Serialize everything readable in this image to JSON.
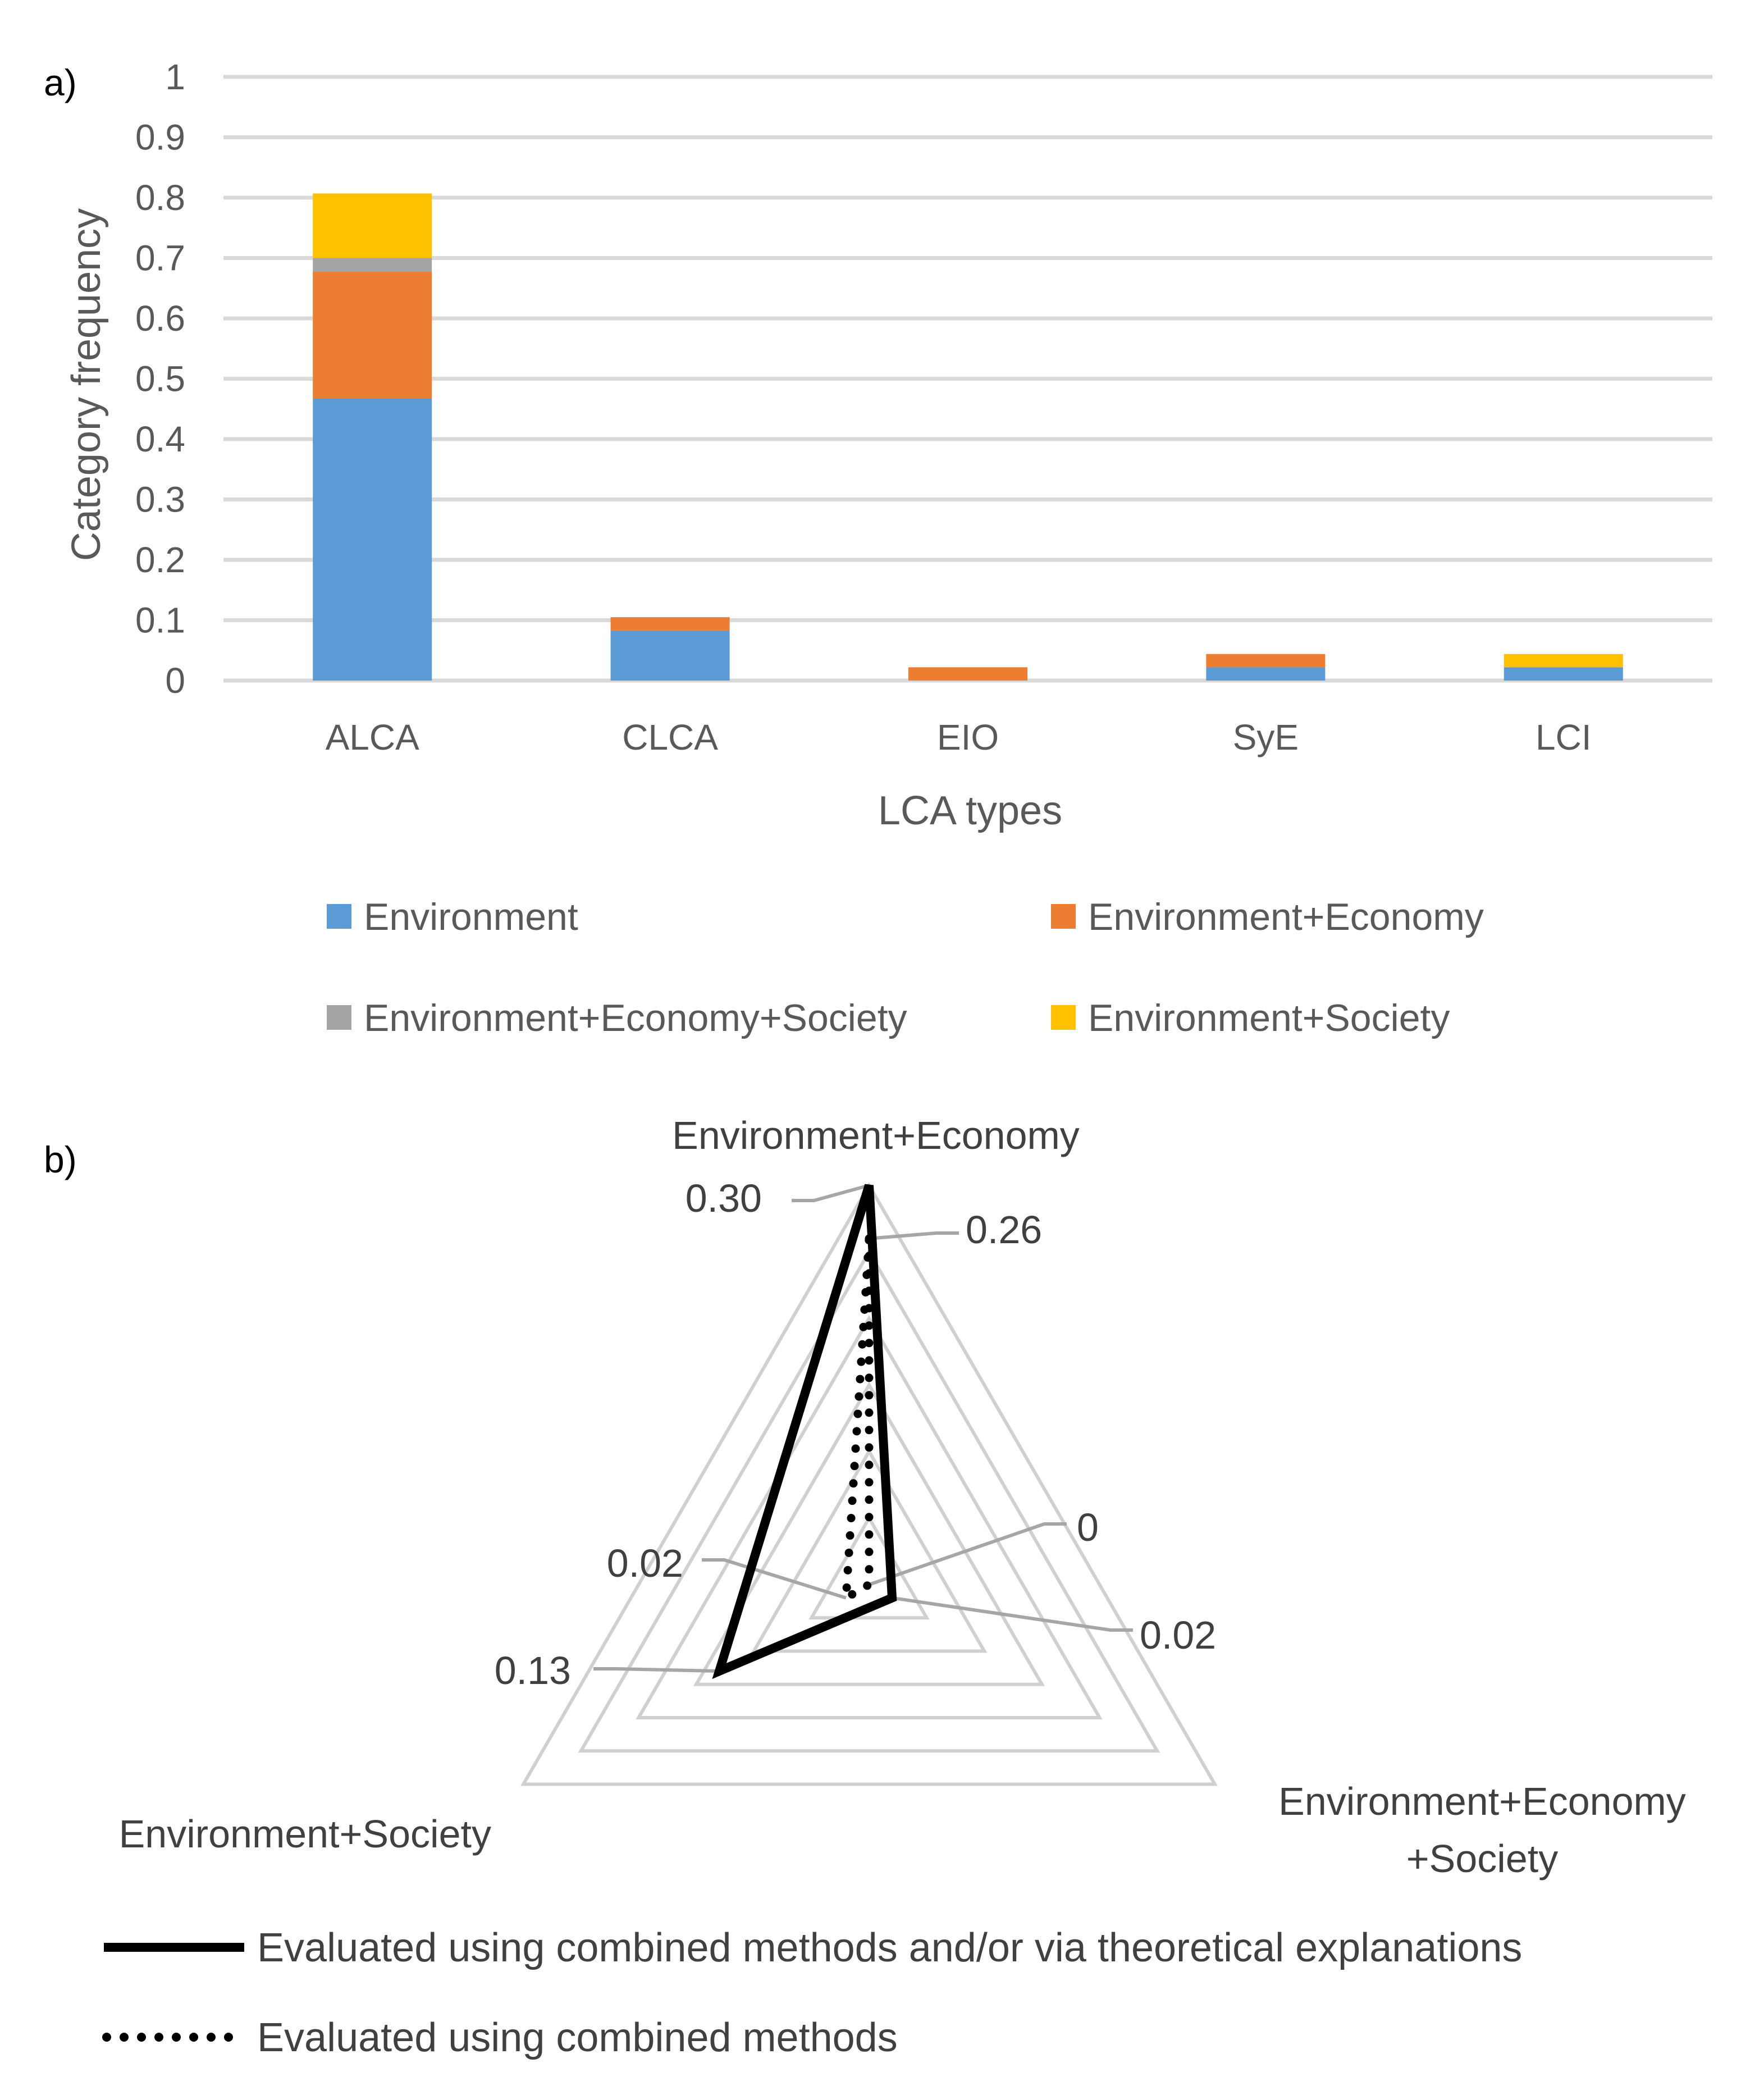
{
  "panel_a_label": "a)",
  "panel_b_label": "b)",
  "colors": {
    "environment": "#5B9BD5",
    "environment_economy": "#ED7D31",
    "environment_economy_society": "#A5A5A5",
    "environment_society": "#FFC000",
    "grid": "#D9D9D9",
    "radar_grid": "#D0D0D0",
    "leader": "#A6A6A6",
    "radar_series": "#000000"
  },
  "chart_data": [
    {
      "type": "bar",
      "stacked": true,
      "title": "",
      "xlabel": "LCA types",
      "ylabel": "Category frequency",
      "ylim": [
        0,
        1
      ],
      "yticks": [
        "0",
        "0.1",
        "0.2",
        "0.3",
        "0.4",
        "0.5",
        "0.6",
        "0.7",
        "0.8",
        "0.9",
        "1"
      ],
      "categories": [
        "ALCA",
        "CLCA",
        "EIO",
        "SyE",
        "LCI"
      ],
      "series": [
        {
          "name": "Environment",
          "color_key": "environment",
          "values": [
            0.467,
            0.083,
            0.0,
            0.022,
            0.022
          ]
        },
        {
          "name": "Environment+Economy",
          "color_key": "environment_economy",
          "values": [
            0.211,
            0.022,
            0.022,
            0.022,
            0.0
          ]
        },
        {
          "name": "Environment+Economy+Society",
          "color_key": "environment_economy_society",
          "values": [
            0.022,
            0.0,
            0.0,
            0.0,
            0.0
          ]
        },
        {
          "name": "Environment+Society",
          "color_key": "environment_society",
          "values": [
            0.107,
            0.0,
            0.0,
            0.0,
            0.022
          ]
        }
      ],
      "legend_position": "bottom"
    },
    {
      "type": "radar",
      "title": "",
      "axes": [
        {
          "name": "Environment+Economy",
          "lines": [
            "Environment+Economy"
          ]
        },
        {
          "name": "Environment+Economy+Society",
          "lines": [
            "Environment+Economy",
            "+Society"
          ]
        },
        {
          "name": "Environment+Society",
          "lines": [
            "Environment+Society"
          ]
        }
      ],
      "rmax": 0.3,
      "rings": 6,
      "series": [
        {
          "name": "Evaluated using combined methods and/or via theoretical explanations",
          "style": "solid",
          "values": [
            0.3,
            0.02,
            0.13
          ],
          "value_labels": [
            "0.30",
            "0.02",
            "0.13"
          ]
        },
        {
          "name": "Evaluated using combined methods",
          "style": "dotted",
          "values": [
            0.26,
            0.0,
            0.02
          ],
          "value_labels": [
            "0.26",
            "0",
            "0.02"
          ]
        }
      ],
      "legend_position": "bottom"
    }
  ]
}
